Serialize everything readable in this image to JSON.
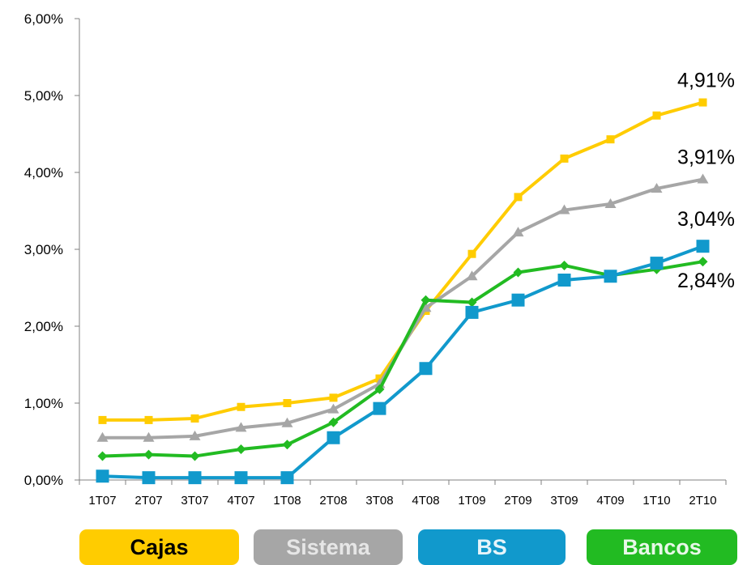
{
  "chart_data": {
    "type": "line",
    "categories": [
      "1T07",
      "2T07",
      "3T07",
      "4T07",
      "1T08",
      "2T08",
      "3T08",
      "4T08",
      "1T09",
      "2T09",
      "3T09",
      "4T09",
      "1T10",
      "2T10"
    ],
    "ylim": [
      0,
      6
    ],
    "yticks": [
      "0,00%",
      "1,00%",
      "2,00%",
      "3,00%",
      "4,00%",
      "5,00%",
      "6,00%"
    ],
    "grid": false,
    "legend": "bottom",
    "series": [
      {
        "name": "Cajas",
        "color": "#FFCC00",
        "marker": "square",
        "values": [
          0.78,
          0.78,
          0.8,
          0.95,
          1.0,
          1.07,
          1.32,
          2.2,
          2.94,
          3.68,
          4.18,
          4.43,
          4.74,
          4.91
        ],
        "end_label": "4,91%"
      },
      {
        "name": "Sistema",
        "color": "#A6A6A6",
        "marker": "triangle",
        "values": [
          0.55,
          0.55,
          0.57,
          0.68,
          0.74,
          0.92,
          1.25,
          2.24,
          2.65,
          3.22,
          3.51,
          3.59,
          3.79,
          3.91
        ],
        "end_label": "3,91%"
      },
      {
        "name": "BS",
        "color": "#1199CC",
        "marker": "big-square",
        "values": [
          0.05,
          0.03,
          0.03,
          0.03,
          0.03,
          0.55,
          0.93,
          1.45,
          2.18,
          2.34,
          2.6,
          2.65,
          2.82,
          3.04
        ],
        "end_label": "3,04%"
      },
      {
        "name": "Bancos",
        "color": "#22BB22",
        "marker": "diamond",
        "values": [
          0.31,
          0.33,
          0.31,
          0.4,
          0.46,
          0.75,
          1.18,
          2.34,
          2.31,
          2.7,
          2.79,
          2.66,
          2.74,
          2.84
        ],
        "end_label": "2,84%"
      }
    ]
  },
  "legend": {
    "items": [
      {
        "label": "Cajas",
        "bg": "#FFCC00",
        "text_color": "#000000"
      },
      {
        "label": "Sistema",
        "bg": "#A6A6A6",
        "text_color": "#E6E6E6"
      },
      {
        "label": "BS",
        "bg": "#1199CC",
        "text_color": "#E6F4FA"
      },
      {
        "label": "Bancos",
        "bg": "#22BB22",
        "text_color": "#E8F8E8"
      }
    ]
  }
}
